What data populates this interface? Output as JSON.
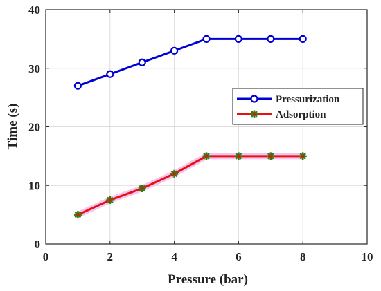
{
  "chart_data": {
    "type": "line",
    "xlabel": "Pressure (bar)",
    "ylabel": "Time (s)",
    "xlim": [
      0,
      10
    ],
    "ylim": [
      0,
      40
    ],
    "xticks": [
      0,
      2,
      4,
      6,
      8,
      10
    ],
    "yticks": [
      0,
      10,
      20,
      30,
      40
    ],
    "grid": true,
    "legend_position": "middle-right",
    "x": [
      1,
      2,
      3,
      4,
      5,
      6,
      7,
      8
    ],
    "series": [
      {
        "name": "Pressurization",
        "values": [
          27,
          29,
          31,
          33,
          35,
          35,
          35,
          35
        ],
        "color": "#0000d4",
        "marker": "circle"
      },
      {
        "name": "Adsorption",
        "values": [
          5,
          7.5,
          9.5,
          12,
          15,
          15,
          15,
          15
        ],
        "color": "#e81010",
        "marker_color": "#3a7a10",
        "marker": "star"
      }
    ]
  }
}
